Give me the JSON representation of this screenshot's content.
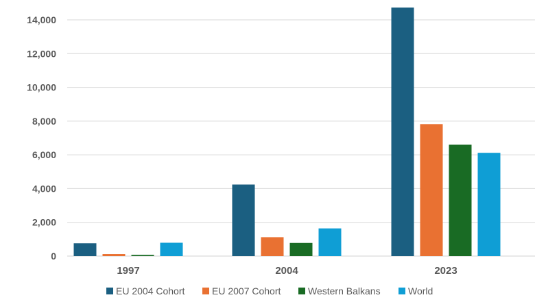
{
  "chart_data": {
    "type": "bar",
    "title": "",
    "xlabel": "",
    "ylabel": "",
    "categories": [
      "1997",
      "2004",
      "2023"
    ],
    "series": [
      {
        "name": "EU 2004 Cohort",
        "color": "#1b5f81",
        "values": [
          760,
          4240,
          14730
        ]
      },
      {
        "name": "EU 2007 Cohort",
        "color": "#e97132",
        "values": [
          120,
          1120,
          7820
        ]
      },
      {
        "name": "Western Balkans",
        "color": "#196b24",
        "values": [
          70,
          780,
          6600
        ]
      },
      {
        "name": "World",
        "color": "#0f9ed5",
        "values": [
          790,
          1640,
          6120
        ]
      }
    ],
    "ylim": [
      0,
      14000
    ],
    "yticks": [
      0,
      2000,
      4000,
      6000,
      8000,
      10000,
      12000,
      14000
    ],
    "ytick_labels": [
      "0",
      "2,000",
      "4,000",
      "6,000",
      "8,000",
      "10,000",
      "12,000",
      "14,000"
    ],
    "grid": true,
    "legend_position": "bottom"
  }
}
